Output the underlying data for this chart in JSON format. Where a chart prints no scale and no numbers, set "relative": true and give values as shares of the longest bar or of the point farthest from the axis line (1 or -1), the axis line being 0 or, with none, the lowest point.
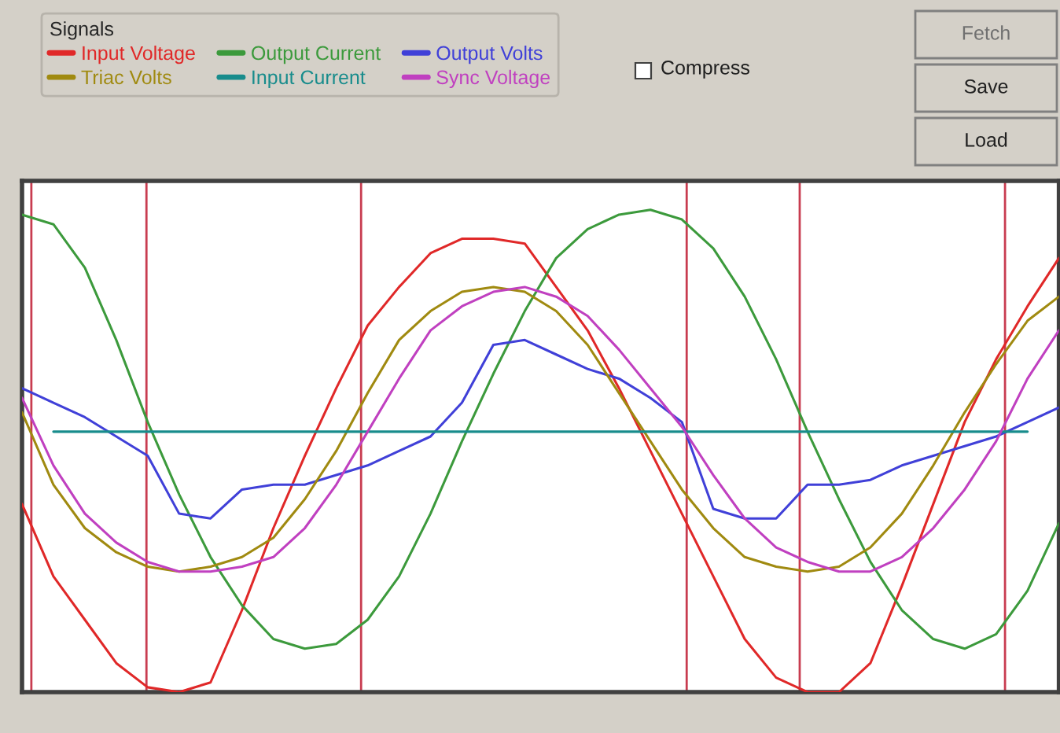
{
  "chart_data": {
    "type": "line",
    "relative": true,
    "legend": "top left",
    "legend_title": "Signals",
    "categories": [
      null,
      null,
      null,
      null,
      null,
      null,
      null,
      null,
      null,
      null,
      null,
      null,
      null,
      null,
      null,
      null,
      null,
      null,
      null,
      null,
      null,
      null,
      null,
      null,
      null,
      null,
      null,
      null,
      null,
      null,
      null,
      null,
      null,
      null
    ],
    "series": [
      {
        "name": "Input Voltage",
        "color": "#e02828",
        "values": [
          0.39,
          0.24,
          0.15,
          0.06,
          0.01,
          0.0,
          0.02,
          0.17,
          0.34,
          0.49,
          0.63,
          0.76,
          0.84,
          0.91,
          0.94,
          0.94,
          0.93,
          0.84,
          0.75,
          0.63,
          0.5,
          0.37,
          0.24,
          0.11,
          0.03,
          0.0,
          0.0,
          0.06,
          0.22,
          0.39,
          0.56,
          0.69,
          0.8,
          0.9
        ]
      },
      {
        "name": "Output Current",
        "color": "#3c9a3c",
        "values": [
          0.99,
          0.97,
          0.88,
          0.73,
          0.56,
          0.41,
          0.28,
          0.18,
          0.11,
          0.09,
          0.1,
          0.15,
          0.24,
          0.37,
          0.52,
          0.66,
          0.79,
          0.9,
          0.96,
          0.99,
          1.0,
          0.98,
          0.92,
          0.82,
          0.69,
          0.54,
          0.4,
          0.27,
          0.17,
          0.11,
          0.09,
          0.12,
          0.21,
          0.35
        ]
      },
      {
        "name": "Output Volts",
        "color": "#4040d8",
        "values": [
          0.63,
          0.6,
          0.57,
          0.53,
          0.49,
          0.37,
          0.36,
          0.42,
          0.43,
          0.43,
          0.45,
          0.47,
          0.5,
          0.53,
          0.6,
          0.72,
          0.73,
          0.7,
          0.67,
          0.65,
          0.61,
          0.56,
          0.38,
          0.36,
          0.36,
          0.43,
          0.43,
          0.44,
          0.47,
          0.49,
          0.51,
          0.53,
          0.56,
          0.59
        ]
      },
      {
        "name": "Triac Volts",
        "color": "#a08a10",
        "values": [
          0.58,
          0.43,
          0.34,
          0.29,
          0.26,
          0.25,
          0.26,
          0.28,
          0.32,
          0.4,
          0.5,
          0.62,
          0.73,
          0.79,
          0.83,
          0.84,
          0.83,
          0.79,
          0.72,
          0.62,
          0.52,
          0.42,
          0.34,
          0.28,
          0.26,
          0.25,
          0.26,
          0.3,
          0.37,
          0.47,
          0.58,
          0.68,
          0.77,
          0.82
        ]
      },
      {
        "name": "Input Current",
        "color": "#188c8c",
        "values": [
          null,
          0.54,
          0.54,
          0.54,
          0.54,
          0.54,
          0.54,
          0.54,
          0.54,
          0.54,
          0.54,
          0.54,
          0.54,
          0.54,
          0.54,
          0.54,
          0.54,
          0.54,
          0.54,
          0.54,
          0.54,
          0.54,
          0.54,
          0.54,
          0.54,
          0.54,
          0.54,
          0.54,
          0.54,
          0.54,
          0.54,
          0.54,
          0.54,
          null
        ]
      },
      {
        "name": "Sync Voltage",
        "color": "#c040c0",
        "values": [
          0.61,
          0.47,
          0.37,
          0.31,
          0.27,
          0.25,
          0.25,
          0.26,
          0.28,
          0.34,
          0.43,
          0.54,
          0.65,
          0.75,
          0.8,
          0.83,
          0.84,
          0.82,
          0.78,
          0.71,
          0.63,
          0.55,
          0.45,
          0.36,
          0.3,
          0.27,
          0.25,
          0.25,
          0.28,
          0.34,
          0.42,
          0.52,
          0.65,
          0.75
        ]
      }
    ],
    "annotations": [
      "Compress",
      "Fetch",
      "Save",
      "Load"
    ]
  }
}
